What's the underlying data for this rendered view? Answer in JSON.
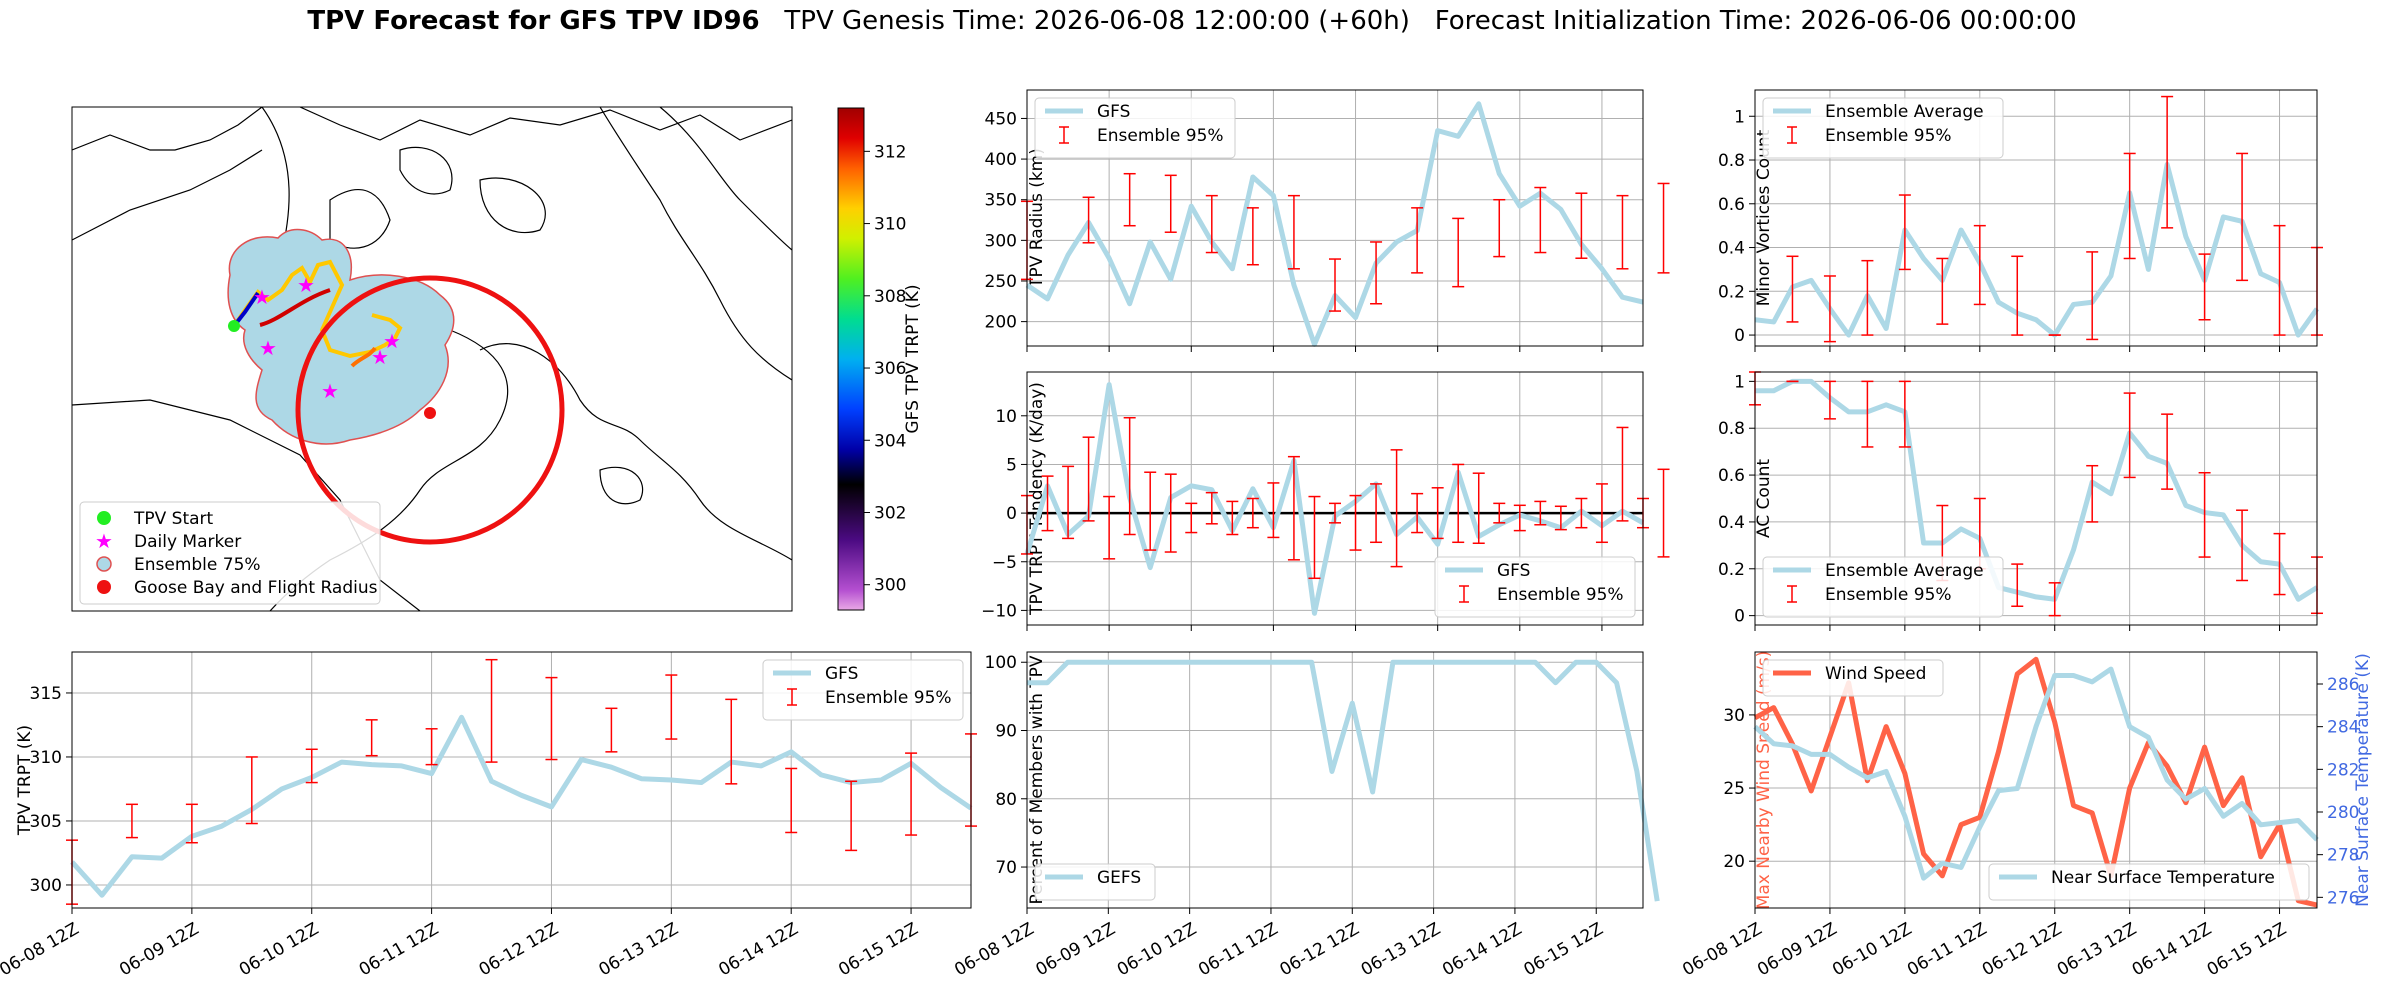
{
  "title": {
    "bold": "TPV Forecast for GFS TPV ID96",
    "genesis": "TPV Genesis Time: 2026-06-08 12:00:00 (+60h)",
    "init": "Forecast Initialization Time: 2026-06-06 00:00:00"
  },
  "colors": {
    "gfs": "#add8e6",
    "error": "#ff0000",
    "wind": "#ff6347",
    "temp_axis": "#4169e1",
    "zero_line": "#000000"
  },
  "map": {
    "colorbar_label": "GFS TPV TRPT (K)",
    "colorbar_ticks": [
      300,
      302,
      304,
      306,
      308,
      310,
      312
    ],
    "colorbar_range": [
      299.3,
      313.2
    ],
    "legend": [
      "TPV Start",
      "Daily Marker",
      "Ensemble 75%",
      "Goose Bay and Flight Radius"
    ],
    "legend_icons": [
      "green-dot-icon",
      "magenta-star-icon",
      "ensemble-circle-icon",
      "red-dot-icon"
    ]
  },
  "chart_data": [
    {
      "id": "radius",
      "type": "line",
      "ylabel": "TPV Radius (km)",
      "ylim": [
        170,
        485
      ],
      "yticks": [
        200,
        250,
        300,
        350,
        400,
        450
      ],
      "grid": true,
      "legend": [
        "GFS",
        "Ensemble 95%"
      ],
      "legend_position": "top-left",
      "series": [
        {
          "name": "GFS",
          "values": [
            245,
            228,
            282,
            322,
            278,
            222,
            298,
            252,
            342,
            298,
            265,
            378,
            355,
            245,
            172,
            232,
            205,
            272,
            298,
            312,
            435,
            428,
            468,
            382,
            342,
            358,
            338,
            295,
            265,
            230,
            224
          ]
        },
        {
          "name": "Ensemble 95%",
          "type": "errorbar",
          "x": [
            0,
            3,
            5,
            7,
            9,
            11,
            13,
            15,
            17,
            19,
            21,
            23,
            25,
            27,
            29,
            31
          ],
          "values": [
            300,
            325,
            350,
            345,
            320,
            305,
            310,
            245,
            260,
            300,
            285,
            315,
            325,
            318,
            310,
            315
          ],
          "errors": [
            48,
            28,
            32,
            35,
            35,
            35,
            45,
            32,
            38,
            40,
            42,
            35,
            40,
            40,
            45,
            55
          ]
        }
      ]
    },
    {
      "id": "minor",
      "type": "line",
      "ylabel": "Minor Vortices Count",
      "ylim": [
        -0.05,
        1.12
      ],
      "yticks": [
        0.0,
        0.2,
        0.4,
        0.6,
        0.8,
        1.0
      ],
      "grid": true,
      "legend": [
        "Ensemble Average",
        "Ensemble 95%"
      ],
      "legend_position": "top-left",
      "series": [
        {
          "name": "Ensemble Average",
          "values": [
            0.07,
            0.06,
            0.22,
            0.25,
            0.12,
            0.0,
            0.18,
            0.03,
            0.48,
            0.35,
            0.25,
            0.48,
            0.33,
            0.15,
            0.1,
            0.07,
            0.0,
            0.14,
            0.15,
            0.27,
            0.65,
            0.3,
            0.78,
            0.45,
            0.25,
            0.54,
            0.52,
            0.28,
            0.24,
            0.0,
            0.12
          ]
        },
        {
          "name": "Ensemble 95%",
          "type": "errorbar",
          "x": [
            2,
            4,
            6,
            8,
            10,
            12,
            14,
            16,
            18,
            20,
            22,
            24,
            26,
            28,
            30
          ],
          "values": [
            0.21,
            0.12,
            0.17,
            0.47,
            0.2,
            0.32,
            0.18,
            0.0,
            0.18,
            0.59,
            0.79,
            0.22,
            0.54,
            0.25,
            0.2
          ],
          "errors": [
            0.15,
            0.15,
            0.17,
            0.17,
            0.15,
            0.18,
            0.18,
            0.0,
            0.2,
            0.24,
            0.3,
            0.15,
            0.29,
            0.25,
            0.2
          ]
        }
      ]
    },
    {
      "id": "tendency",
      "type": "line",
      "ylabel": "TPV TRPT Tendency (K/day)",
      "ylim": [
        -11.5,
        14.5
      ],
      "yticks": [
        -10,
        -5,
        0,
        5,
        10
      ],
      "grid": true,
      "zero_line": true,
      "legend": [
        "GFS",
        "Ensemble 95%"
      ],
      "legend_position": "bottom-right",
      "series": [
        {
          "name": "GFS",
          "values": [
            -4.2,
            2.8,
            -2.2,
            -0.3,
            13.2,
            1.6,
            -5.6,
            1.6,
            2.8,
            2.4,
            -1.8,
            2.5,
            -1.5,
            5.4,
            -10.3,
            -0.3,
            1.2,
            3.0,
            -2.2,
            -0.4,
            -3.2,
            4.2,
            -2.4,
            -1.2,
            -0.2,
            -0.8,
            -1.5,
            0.2,
            -1.3,
            0.2,
            -1.0
          ]
        },
        {
          "name": "Ensemble 95%",
          "type": "errorbar",
          "x": [
            0,
            1,
            2,
            3,
            4,
            5,
            6,
            7,
            8,
            9,
            10,
            11,
            12,
            13,
            14,
            15,
            16,
            17,
            18,
            19,
            20,
            21,
            22,
            23,
            24,
            25,
            26,
            27,
            28,
            29,
            30,
            31
          ],
          "values": [
            -1.2,
            1.0,
            1.1,
            3.5,
            -1.5,
            3.8,
            0.2,
            0.0,
            -0.5,
            0.5,
            -0.5,
            0.0,
            0.3,
            0.5,
            -2.5,
            0.0,
            -1.0,
            0.0,
            0.5,
            0.0,
            0.0,
            1.0,
            0.5,
            0.0,
            -0.5,
            0.0,
            -0.5,
            0.0,
            0.0,
            4.0,
            0.0,
            0.0
          ],
          "errors": [
            3.0,
            2.8,
            3.7,
            4.3,
            3.2,
            6.0,
            4.0,
            4.0,
            1.5,
            1.6,
            1.7,
            1.5,
            2.8,
            5.3,
            4.2,
            1.0,
            2.8,
            3.0,
            6.0,
            2.0,
            2.6,
            4.0,
            3.6,
            1.0,
            1.3,
            1.2,
            1.2,
            1.5,
            3.0,
            4.8,
            1.5,
            4.5
          ]
        }
      ]
    },
    {
      "id": "ac",
      "type": "line",
      "ylabel": "AC Count",
      "ylim": [
        -0.04,
        1.04
      ],
      "yticks": [
        0.0,
        0.2,
        0.4,
        0.6,
        0.8,
        1.0
      ],
      "grid": true,
      "legend": [
        "Ensemble Average",
        "Ensemble 95%"
      ],
      "legend_position": "bottom-left",
      "series": [
        {
          "name": "Ensemble Average",
          "values": [
            0.96,
            0.96,
            1.0,
            1.0,
            0.93,
            0.87,
            0.87,
            0.9,
            0.87,
            0.31,
            0.31,
            0.37,
            0.33,
            0.12,
            0.1,
            0.08,
            0.07,
            0.28,
            0.57,
            0.52,
            0.78,
            0.68,
            0.65,
            0.47,
            0.44,
            0.43,
            0.3,
            0.23,
            0.22,
            0.07,
            0.12
          ]
        },
        {
          "name": "Ensemble 95%",
          "type": "errorbar",
          "x": [
            0,
            2,
            4,
            6,
            8,
            10,
            12,
            14,
            16,
            18,
            20,
            22,
            24,
            26,
            28,
            30
          ],
          "values": [
            0.97,
            1.0,
            0.92,
            0.86,
            0.86,
            0.31,
            0.35,
            0.13,
            0.07,
            0.52,
            0.77,
            0.7,
            0.43,
            0.3,
            0.22,
            0.13
          ],
          "errors": [
            0.07,
            0.0,
            0.08,
            0.14,
            0.14,
            0.16,
            0.15,
            0.09,
            0.07,
            0.12,
            0.18,
            0.16,
            0.18,
            0.15,
            0.13,
            0.12
          ]
        }
      ]
    },
    {
      "id": "trpt",
      "type": "line",
      "ylabel": "TPV TRPT (K)",
      "ylim": [
        298.2,
        318.2
      ],
      "yticks": [
        300,
        305,
        310,
        315
      ],
      "grid": true,
      "legend": [
        "GFS",
        "Ensemble 95%"
      ],
      "legend_position": "top-right",
      "series": [
        {
          "name": "GFS",
          "values": [
            301.8,
            299.2,
            302.2,
            302.1,
            303.8,
            304.6,
            305.9,
            307.5,
            308.4,
            309.6,
            309.4,
            309.3,
            308.7,
            313.1,
            308.1,
            307.0,
            306.1,
            309.8,
            309.2,
            308.3,
            308.2,
            308.0,
            309.6,
            309.3,
            310.4,
            308.6,
            308.0,
            308.2,
            309.5,
            307.6,
            306.0
          ]
        },
        {
          "name": "Ensemble 95%",
          "type": "errorbar",
          "x": [
            0,
            2,
            4,
            6,
            8,
            10,
            12,
            14,
            16,
            18,
            20,
            22,
            24,
            26,
            28,
            30
          ],
          "values": [
            301.0,
            305.0,
            304.8,
            307.4,
            309.3,
            311.5,
            310.8,
            313.6,
            313.0,
            312.1,
            313.9,
            311.2,
            306.6,
            305.4,
            307.1,
            308.2
          ],
          "errors": [
            2.5,
            1.3,
            1.5,
            2.6,
            1.3,
            1.4,
            1.4,
            4.0,
            3.2,
            1.7,
            2.5,
            3.3,
            2.5,
            2.7,
            3.2,
            3.6
          ]
        }
      ]
    },
    {
      "id": "percent",
      "type": "line",
      "ylabel": "Percent of Members with TPV",
      "ylim": [
        64,
        101.5
      ],
      "yticks": [
        70,
        80,
        90,
        100
      ],
      "grid": true,
      "legend": [
        "GEFS"
      ],
      "legend_position": "bottom-left",
      "series": [
        {
          "name": "GEFS",
          "values": [
            97,
            97,
            100,
            100,
            100,
            100,
            100,
            100,
            100,
            100,
            100,
            100,
            100,
            100,
            100,
            84,
            94,
            81,
            100,
            100,
            100,
            100,
            100,
            100,
            100,
            100,
            97,
            100,
            100,
            97,
            84,
            65
          ]
        }
      ]
    },
    {
      "id": "wind",
      "type": "line",
      "ylabel": "Max Nearby Wind Speed (m/s)",
      "ylabel2": "Near Surface Temperature (K)",
      "ylim": [
        16.8,
        34.3
      ],
      "ylim2": [
        275.5,
        287.5
      ],
      "yticks": [
        20,
        25,
        30
      ],
      "yticks2": [
        276,
        278,
        280,
        282,
        284,
        286
      ],
      "grid": true,
      "legend": [
        "Wind Speed"
      ],
      "legend2": [
        "Near Surface Temperature"
      ],
      "series": [
        {
          "name": "Wind Speed",
          "values": [
            29.8,
            30.5,
            28.0,
            24.8,
            28.5,
            32.2,
            25.5,
            29.2,
            26.0,
            20.5,
            19.0,
            22.5,
            23.0,
            27.5,
            32.8,
            33.8,
            29.5,
            23.8,
            23.3,
            19.0,
            25.0,
            28.1,
            26.5,
            24.0,
            27.8,
            23.8,
            25.7,
            20.3,
            22.5,
            17.3,
            17.0
          ]
        },
        {
          "name": "Near Surface Temperature",
          "axis": "right",
          "values": [
            284.0,
            283.2,
            283.1,
            282.7,
            282.7,
            282.1,
            281.6,
            281.9,
            279.8,
            276.9,
            277.6,
            277.4,
            279.3,
            281.0,
            281.1,
            284.0,
            286.4,
            286.4,
            286.1,
            286.7,
            284.0,
            283.5,
            281.5,
            280.6,
            281.1,
            279.8,
            280.4,
            279.4,
            279.5,
            279.6,
            278.7
          ]
        }
      ]
    }
  ],
  "x_axis": {
    "tick_labels": [
      "06-08 12Z",
      "06-09 12Z",
      "06-10 12Z",
      "06-11 12Z",
      "06-12 12Z",
      "06-13 12Z",
      "06-14 12Z",
      "06-15 12Z"
    ],
    "tick_positions": [
      0,
      4,
      8,
      12,
      16,
      20,
      24,
      28
    ]
  }
}
